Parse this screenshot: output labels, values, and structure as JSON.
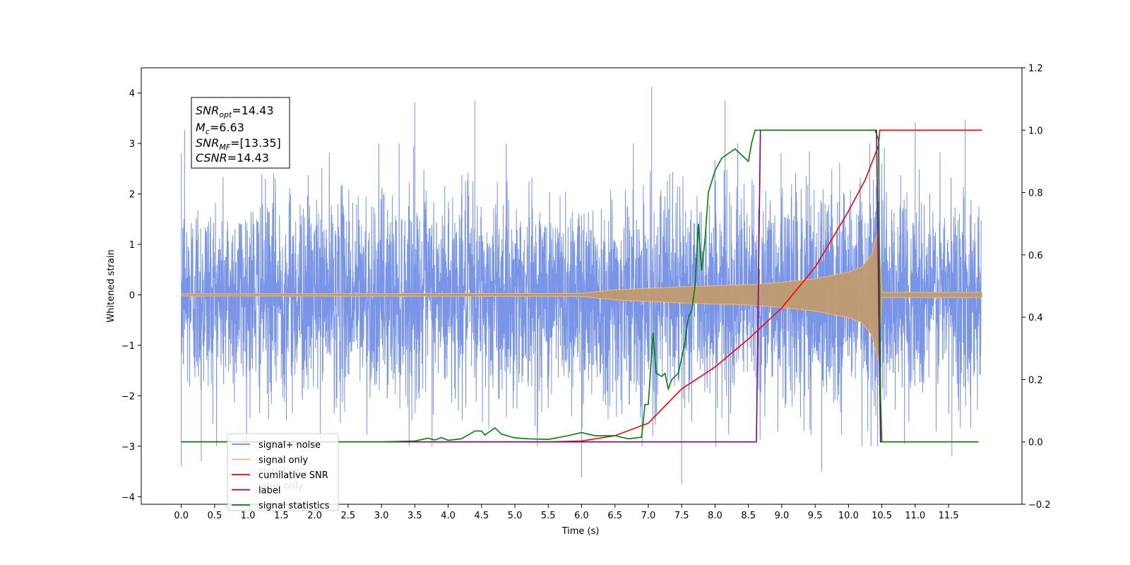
{
  "chart_data": {
    "type": "line",
    "xlabel": "Time (s)",
    "ylabel": "Whitened strain",
    "xlim": [
      -0.6,
      12.6
    ],
    "ylim": [
      -4.15,
      4.5
    ],
    "y2lim": [
      -0.2,
      1.2
    ],
    "x_ticks": [
      "0.0",
      "0.5",
      "1.0",
      "1.5",
      "2.0",
      "2.5",
      "3.0",
      "3.5",
      "4.0",
      "4.5",
      "5.0",
      "5.5",
      "6.0",
      "6.5",
      "7.0",
      "7.5",
      "8.0",
      "8.5",
      "9.0",
      "9.5",
      "10.0",
      "10.5",
      "11.0",
      "11.5"
    ],
    "y_ticks": [
      "−4",
      "−3",
      "−2",
      "−1",
      "0",
      "1",
      "2",
      "3",
      "4"
    ],
    "y2_ticks": [
      "−0.2",
      "0.0",
      "0.2",
      "0.4",
      "0.6",
      "0.8",
      "1.0",
      "1.2"
    ],
    "annotation": {
      "snr_opt": {
        "name": "SNR",
        "sub": "opt",
        "value": "=14.43"
      },
      "mc": {
        "name": "M",
        "sub": "c",
        "value": "=6.63"
      },
      "snr_mf": {
        "name": "SNR",
        "sub": "MF",
        "value": "=[13.35]"
      },
      "csnr": {
        "name": "CSNR",
        "value": "=14.43"
      }
    },
    "legend": {
      "placement": "lower-left",
      "entries": [
        {
          "label": "signal+ noise",
          "color": "#6b8ae6"
        },
        {
          "label": "signal only",
          "color": "#f5b86a"
        },
        {
          "label": "cumilative SNR",
          "color": "#ff0000"
        },
        {
          "label": "label",
          "color": "#800080"
        },
        {
          "label": "signal statistics",
          "color": "#008000"
        }
      ],
      "ghost_labels": [
        "signal only",
        "label only"
      ]
    },
    "series": [
      {
        "name": "signal+ noise",
        "axis": "left",
        "color": "#6b8ae6",
        "noise_sigma": 1.0,
        "t_start": 0.0,
        "t_end": 11.99,
        "notable_peaks": [
          [
            0.05,
            3.27
          ],
          [
            0.0,
            -3.4
          ],
          [
            0.3,
            -3.3
          ],
          [
            3.5,
            3.82
          ],
          [
            4.4,
            3.85
          ],
          [
            6.0,
            -3.62
          ],
          [
            7.05,
            4.12
          ],
          [
            7.5,
            -3.75
          ],
          [
            8.15,
            3.85
          ],
          [
            9.6,
            -3.5
          ],
          [
            11.0,
            3.42
          ],
          [
            11.55,
            -3.2
          ],
          [
            11.75,
            3.47
          ]
        ]
      },
      {
        "name": "signal only",
        "axis": "left",
        "color": "#f5b86a",
        "amplitude_envelope": [
          [
            0.0,
            0.02
          ],
          [
            6.0,
            0.03
          ],
          [
            6.5,
            0.1
          ],
          [
            7.5,
            0.16
          ],
          [
            8.5,
            0.2
          ],
          [
            9.0,
            0.25
          ],
          [
            9.5,
            0.32
          ],
          [
            10.0,
            0.45
          ],
          [
            10.2,
            0.55
          ],
          [
            10.35,
            0.8
          ],
          [
            10.42,
            1.15
          ],
          [
            10.45,
            1.35
          ],
          [
            10.5,
            0.05
          ],
          [
            12.0,
            0.05
          ]
        ]
      },
      {
        "name": "cumilative SNR",
        "axis": "right",
        "color": "#ff0000",
        "points": [
          [
            0.0,
            0.0
          ],
          [
            5.5,
            0.0
          ],
          [
            6.0,
            0.003
          ],
          [
            6.5,
            0.02
          ],
          [
            7.0,
            0.06
          ],
          [
            7.5,
            0.17
          ],
          [
            8.0,
            0.24
          ],
          [
            8.5,
            0.33
          ],
          [
            9.0,
            0.43
          ],
          [
            9.5,
            0.56
          ],
          [
            10.0,
            0.74
          ],
          [
            10.25,
            0.84
          ],
          [
            10.45,
            0.95
          ],
          [
            10.47,
            1.0
          ],
          [
            12.0,
            1.0
          ]
        ]
      },
      {
        "name": "label",
        "axis": "right",
        "color": "#800080",
        "points": [
          [
            0.0,
            0.0
          ],
          [
            8.62,
            0.0
          ],
          [
            8.68,
            1.0
          ],
          [
            10.42,
            1.0
          ],
          [
            10.48,
            0.0
          ],
          [
            11.95,
            0.0
          ]
        ]
      },
      {
        "name": "signal statistics",
        "axis": "right",
        "color": "#008000",
        "points": [
          [
            0.0,
            0.0
          ],
          [
            2.5,
            0.0
          ],
          [
            3.0,
            0.0
          ],
          [
            3.5,
            0.003
          ],
          [
            3.7,
            0.012
          ],
          [
            3.8,
            0.006
          ],
          [
            3.9,
            0.014
          ],
          [
            4.0,
            0.005
          ],
          [
            4.2,
            0.01
          ],
          [
            4.4,
            0.035
          ],
          [
            4.5,
            0.035
          ],
          [
            4.55,
            0.022
          ],
          [
            4.7,
            0.045
          ],
          [
            4.8,
            0.025
          ],
          [
            5.0,
            0.013
          ],
          [
            5.2,
            0.01
          ],
          [
            5.5,
            0.008
          ],
          [
            5.8,
            0.02
          ],
          [
            6.0,
            0.03
          ],
          [
            6.2,
            0.02
          ],
          [
            6.5,
            0.02
          ],
          [
            6.7,
            0.01
          ],
          [
            6.9,
            0.015
          ],
          [
            6.95,
            0.12
          ],
          [
            7.0,
            0.12
          ],
          [
            7.07,
            0.35
          ],
          [
            7.12,
            0.22
          ],
          [
            7.2,
            0.21
          ],
          [
            7.25,
            0.22
          ],
          [
            7.3,
            0.17
          ],
          [
            7.35,
            0.2
          ],
          [
            7.45,
            0.22
          ],
          [
            7.55,
            0.32
          ],
          [
            7.6,
            0.4
          ],
          [
            7.65,
            0.42
          ],
          [
            7.7,
            0.5
          ],
          [
            7.75,
            0.7
          ],
          [
            7.8,
            0.55
          ],
          [
            7.85,
            0.65
          ],
          [
            7.9,
            0.8
          ],
          [
            8.0,
            0.87
          ],
          [
            8.1,
            0.91
          ],
          [
            8.3,
            0.94
          ],
          [
            8.45,
            0.91
          ],
          [
            8.5,
            0.9
          ],
          [
            8.55,
            0.96
          ],
          [
            8.6,
            1.0
          ],
          [
            8.7,
            1.0
          ],
          [
            10.4,
            1.0
          ],
          [
            10.45,
            0.97
          ],
          [
            10.48,
            0.15
          ],
          [
            10.5,
            0.0
          ],
          [
            11.95,
            0.0
          ]
        ]
      }
    ]
  }
}
